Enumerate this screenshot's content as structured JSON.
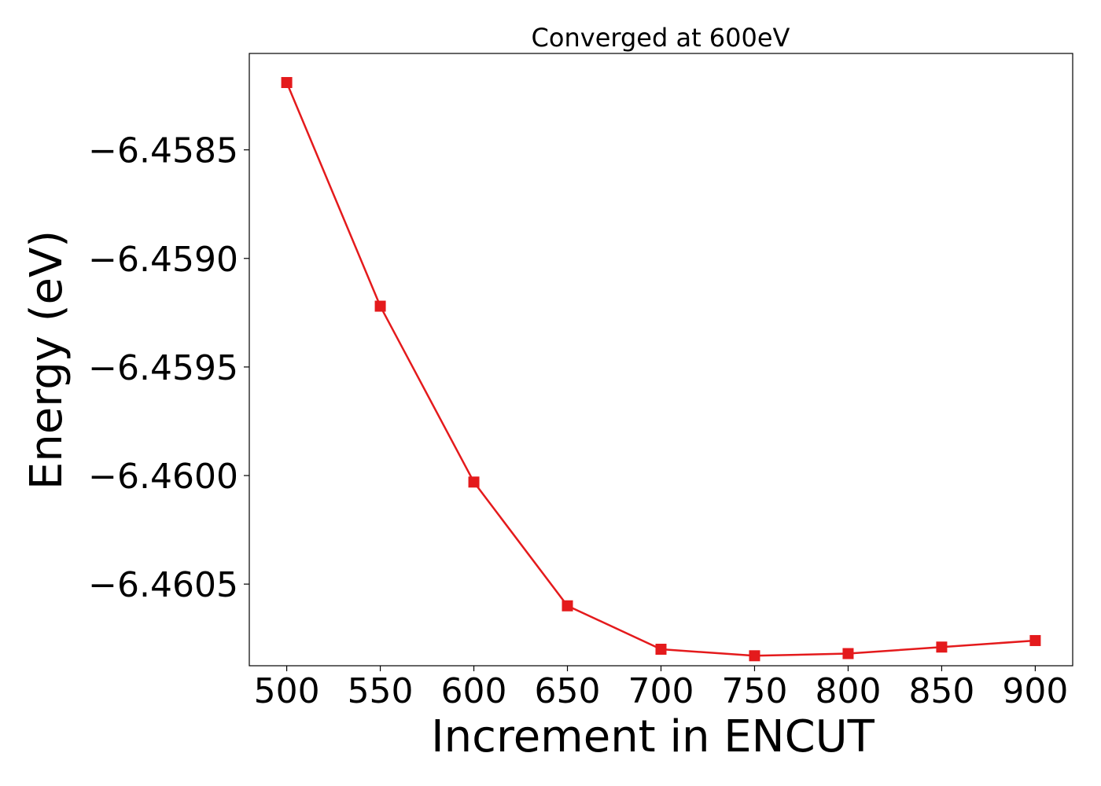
{
  "chart_data": {
    "type": "line",
    "title": "Converged at 600eV",
    "xlabel": "Increment in ENCUT",
    "ylabel": "Energy (eV)",
    "x": [
      500,
      550,
      600,
      650,
      700,
      750,
      800,
      850,
      900
    ],
    "series": [
      {
        "values": [
          -6.45819,
          -6.45922,
          -6.46003,
          -6.4606,
          -6.4608,
          -6.46083,
          -6.46082,
          -6.46079,
          -6.46076
        ],
        "color": "#e41a1c",
        "marker": "square"
      }
    ],
    "xlim": [
      480,
      920
    ],
    "ylim": [
      -6.460876,
      -6.458056
    ],
    "xticks": [
      500,
      550,
      600,
      650,
      700,
      750,
      800,
      850,
      900
    ],
    "xtick_labels": [
      "500",
      "550",
      "600",
      "650",
      "700",
      "750",
      "800",
      "850",
      "900"
    ],
    "yticks": [
      -6.4585,
      -6.459,
      -6.4595,
      -6.46,
      -6.4605
    ],
    "ytick_labels": [
      "−6.4585",
      "−6.4590",
      "−6.4595",
      "−6.4600",
      "−6.4605"
    ],
    "grid": false,
    "legend": "none"
  }
}
